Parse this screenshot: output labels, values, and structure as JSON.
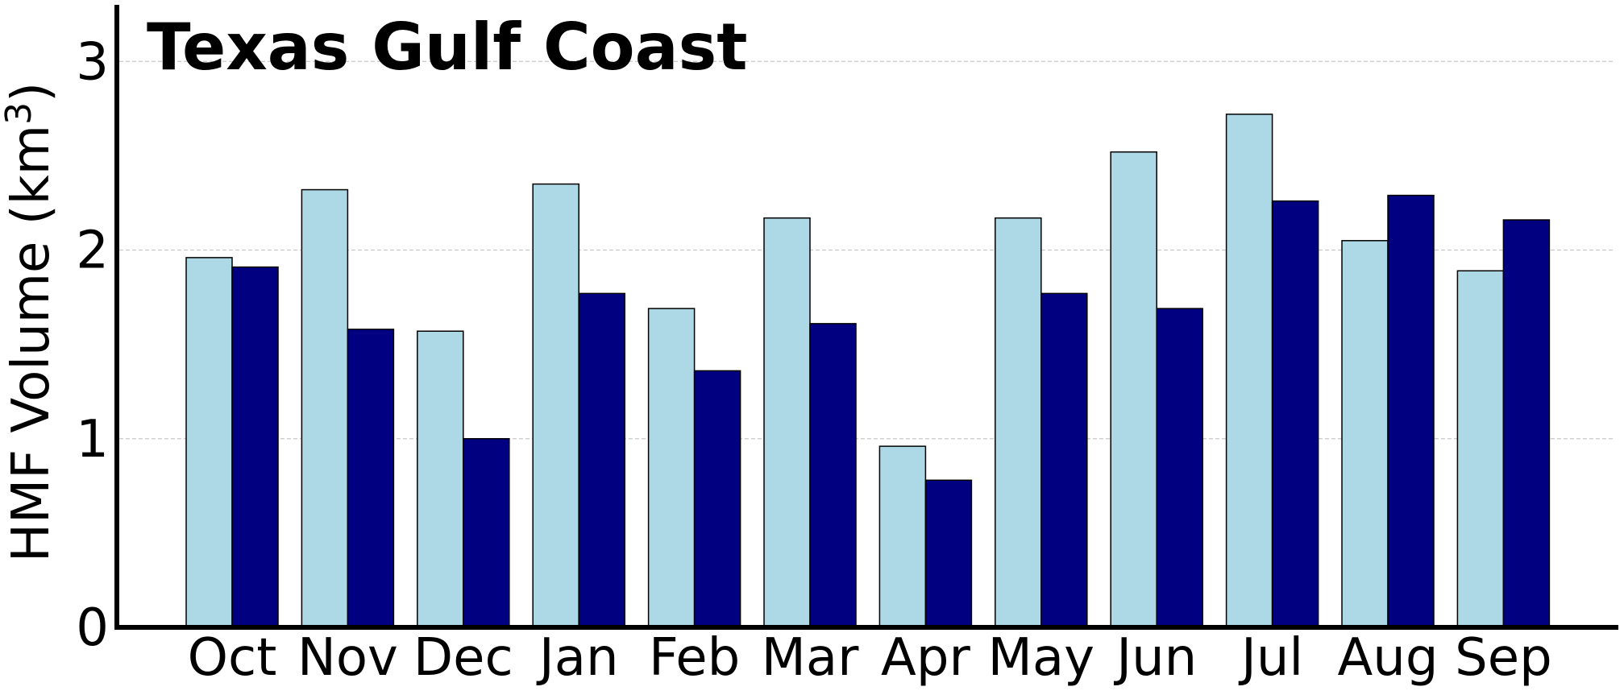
{
  "chart_data": {
    "type": "bar",
    "title": "Texas Gulf Coast",
    "ylabel": "HMF Volume (km",
    "ylabel_superscript": "3",
    "ylabel_close": ")",
    "xlabel": "",
    "categories": [
      "Oct",
      "Nov",
      "Dec",
      "Jan",
      "Feb",
      "Mar",
      "Apr",
      "May",
      "Jun",
      "Jul",
      "Aug",
      "Sep"
    ],
    "series": [
      {
        "color": "#add8e6",
        "values": [
          1.96,
          2.32,
          1.57,
          2.35,
          1.69,
          2.17,
          0.96,
          2.17,
          2.52,
          2.72,
          2.05,
          1.89
        ]
      },
      {
        "color": "#000080",
        "values": [
          1.91,
          1.58,
          1.0,
          1.77,
          1.36,
          1.61,
          0.78,
          1.77,
          1.69,
          2.26,
          2.29,
          2.16
        ]
      }
    ],
    "ylim": [
      0,
      3.3
    ],
    "yticks": [
      0,
      1,
      2,
      3
    ],
    "grid": "horizontal-dashed",
    "legend": "none"
  }
}
